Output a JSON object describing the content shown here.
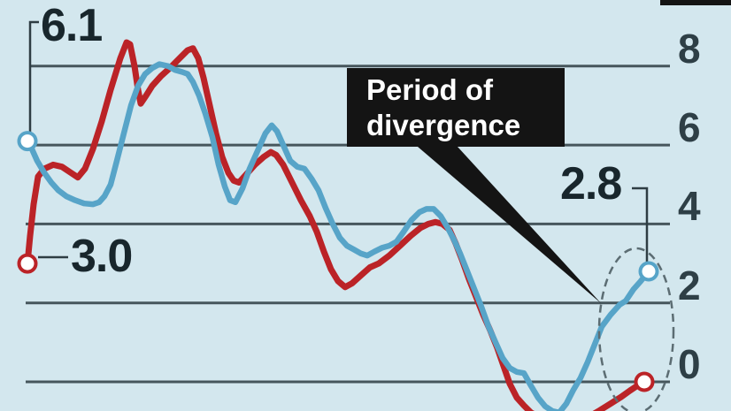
{
  "figure": {
    "background_color": "#d3e7ee",
    "gridline_color": "#46565c",
    "annotation_box": {
      "line1": "Period of",
      "line2": "divergence",
      "bg_color": "#141414",
      "text_color": "#ffffff"
    },
    "point_labels": {
      "blue_start": "6.1",
      "red_start": "3.0",
      "blue_end": "2.8"
    }
  },
  "chart_data": {
    "type": "line",
    "title": "",
    "xlabel": "",
    "ylabel": "",
    "x_axis_labels_visible": false,
    "grid": true,
    "legend": "none",
    "y_ticks": [
      8,
      6,
      4,
      2,
      0
    ],
    "y_tick_labels": [
      "8",
      "6",
      "4",
      "2",
      "0"
    ],
    "y_tick_side": "right",
    "ylim": [
      -1.05,
      9.7
    ],
    "annotations": {
      "blue_start_value": 6.1,
      "red_start_value": 3.0,
      "blue_end_value": 2.8,
      "divergence_circled": true,
      "arrow_text": "Period of divergence"
    },
    "series": [
      {
        "name": "red-line",
        "color": "#bb2327",
        "width": 7,
        "start_marker": true,
        "end_marker": true,
        "points": [
          [
            31,
            3.0
          ],
          [
            34,
            3.7
          ],
          [
            38,
            4.5
          ],
          [
            43,
            5.2
          ],
          [
            50,
            5.4
          ],
          [
            60,
            5.5
          ],
          [
            70,
            5.45
          ],
          [
            80,
            5.3
          ],
          [
            88,
            5.18
          ],
          [
            96,
            5.4
          ],
          [
            105,
            5.9
          ],
          [
            115,
            6.6
          ],
          [
            125,
            7.4
          ],
          [
            136,
            8.2
          ],
          [
            143,
            8.6
          ],
          [
            147,
            8.55
          ],
          [
            152,
            8.0
          ],
          [
            156,
            7.4
          ],
          [
            159,
            7.05
          ],
          [
            165,
            7.25
          ],
          [
            172,
            7.5
          ],
          [
            182,
            7.75
          ],
          [
            192,
            7.95
          ],
          [
            203,
            8.2
          ],
          [
            212,
            8.4
          ],
          [
            218,
            8.45
          ],
          [
            224,
            8.2
          ],
          [
            230,
            7.7
          ],
          [
            237,
            7.0
          ],
          [
            244,
            6.3
          ],
          [
            251,
            5.7
          ],
          [
            258,
            5.3
          ],
          [
            264,
            5.1
          ],
          [
            270,
            5.05
          ],
          [
            278,
            5.25
          ],
          [
            288,
            5.5
          ],
          [
            298,
            5.7
          ],
          [
            306,
            5.82
          ],
          [
            312,
            5.75
          ],
          [
            320,
            5.5
          ],
          [
            330,
            5.05
          ],
          [
            340,
            4.6
          ],
          [
            350,
            4.2
          ],
          [
            358,
            3.8
          ],
          [
            366,
            3.3
          ],
          [
            374,
            2.85
          ],
          [
            382,
            2.55
          ],
          [
            390,
            2.4
          ],
          [
            398,
            2.5
          ],
          [
            408,
            2.7
          ],
          [
            418,
            2.9
          ],
          [
            428,
            3.0
          ],
          [
            440,
            3.2
          ],
          [
            452,
            3.45
          ],
          [
            464,
            3.7
          ],
          [
            475,
            3.9
          ],
          [
            484,
            4.0
          ],
          [
            492,
            4.05
          ],
          [
            500,
            4.0
          ],
          [
            508,
            3.85
          ],
          [
            515,
            3.5
          ],
          [
            522,
            3.1
          ],
          [
            530,
            2.6
          ],
          [
            538,
            2.15
          ],
          [
            546,
            1.7
          ],
          [
            554,
            1.3
          ],
          [
            562,
            0.85
          ],
          [
            569,
            0.4
          ],
          [
            576,
            -0.05
          ],
          [
            584,
            -0.4
          ],
          [
            592,
            -0.6
          ],
          [
            600,
            -0.78
          ],
          [
            612,
            -0.92
          ],
          [
            625,
            -1.0
          ],
          [
            640,
            -1.0
          ],
          [
            655,
            -0.95
          ],
          [
            668,
            -0.85
          ],
          [
            678,
            -0.72
          ],
          [
            690,
            -0.55
          ],
          [
            702,
            -0.38
          ],
          [
            712,
            -0.22
          ],
          [
            720,
            -0.1
          ],
          [
            728,
            0.0
          ]
        ]
      },
      {
        "name": "blue-line",
        "color": "#57a4c8",
        "width": 6.5,
        "start_marker": true,
        "end_marker": true,
        "points": [
          [
            31,
            6.1
          ],
          [
            36,
            5.9
          ],
          [
            42,
            5.6
          ],
          [
            50,
            5.3
          ],
          [
            58,
            5.05
          ],
          [
            66,
            4.85
          ],
          [
            75,
            4.7
          ],
          [
            85,
            4.6
          ],
          [
            95,
            4.52
          ],
          [
            105,
            4.5
          ],
          [
            112,
            4.55
          ],
          [
            118,
            4.7
          ],
          [
            125,
            5.0
          ],
          [
            132,
            5.6
          ],
          [
            140,
            6.3
          ],
          [
            148,
            7.0
          ],
          [
            156,
            7.5
          ],
          [
            164,
            7.8
          ],
          [
            172,
            7.95
          ],
          [
            180,
            8.05
          ],
          [
            190,
            8.0
          ],
          [
            198,
            7.9
          ],
          [
            206,
            7.85
          ],
          [
            212,
            7.8
          ],
          [
            218,
            7.6
          ],
          [
            225,
            7.25
          ],
          [
            232,
            6.8
          ],
          [
            240,
            6.2
          ],
          [
            247,
            5.5
          ],
          [
            254,
            4.95
          ],
          [
            260,
            4.6
          ],
          [
            266,
            4.55
          ],
          [
            274,
            4.9
          ],
          [
            282,
            5.4
          ],
          [
            292,
            5.9
          ],
          [
            300,
            6.3
          ],
          [
            307,
            6.5
          ],
          [
            313,
            6.35
          ],
          [
            320,
            6.0
          ],
          [
            328,
            5.6
          ],
          [
            336,
            5.45
          ],
          [
            344,
            5.4
          ],
          [
            352,
            5.15
          ],
          [
            360,
            4.85
          ],
          [
            368,
            4.4
          ],
          [
            376,
            4.0
          ],
          [
            384,
            3.65
          ],
          [
            392,
            3.45
          ],
          [
            400,
            3.35
          ],
          [
            408,
            3.25
          ],
          [
            415,
            3.2
          ],
          [
            423,
            3.3
          ],
          [
            432,
            3.4
          ],
          [
            440,
            3.45
          ],
          [
            448,
            3.55
          ],
          [
            456,
            3.8
          ],
          [
            465,
            4.1
          ],
          [
            474,
            4.3
          ],
          [
            482,
            4.38
          ],
          [
            490,
            4.38
          ],
          [
            498,
            4.2
          ],
          [
            506,
            3.9
          ],
          [
            513,
            3.6
          ],
          [
            520,
            3.25
          ],
          [
            528,
            2.8
          ],
          [
            536,
            2.35
          ],
          [
            544,
            1.9
          ],
          [
            552,
            1.4
          ],
          [
            560,
            1.0
          ],
          [
            568,
            0.6
          ],
          [
            576,
            0.35
          ],
          [
            584,
            0.25
          ],
          [
            592,
            0.22
          ],
          [
            600,
            -0.1
          ],
          [
            608,
            -0.4
          ],
          [
            616,
            -0.62
          ],
          [
            624,
            -0.74
          ],
          [
            632,
            -0.78
          ],
          [
            640,
            -0.55
          ],
          [
            648,
            -0.2
          ],
          [
            656,
            0.1
          ],
          [
            664,
            0.5
          ],
          [
            672,
            0.95
          ],
          [
            680,
            1.4
          ],
          [
            690,
            1.7
          ],
          [
            700,
            1.95
          ],
          [
            707,
            2.05
          ],
          [
            716,
            2.35
          ],
          [
            724,
            2.55
          ],
          [
            733,
            2.8
          ]
        ]
      }
    ]
  }
}
